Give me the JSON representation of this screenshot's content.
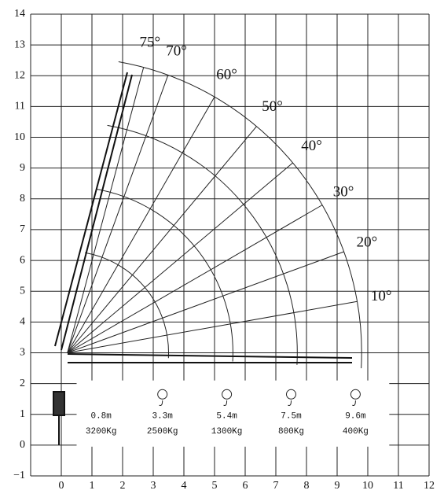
{
  "axes": {
    "xlim": [
      -1,
      12
    ],
    "ylim": [
      -1,
      14
    ],
    "xticks": [
      {
        "value": -1,
        "label": ""
      },
      0,
      1,
      2,
      3,
      4,
      5,
      6,
      7,
      8,
      9,
      10,
      11,
      12
    ],
    "yticks": [
      {
        "value": -1,
        "label": "−1"
      },
      0,
      1,
      2,
      3,
      4,
      5,
      6,
      7,
      8,
      9,
      10,
      11,
      12,
      13,
      14
    ]
  },
  "angles": [
    {
      "value": 75,
      "label": "75°"
    },
    {
      "value": 70,
      "label": "70°"
    },
    {
      "value": 60,
      "label": "60°"
    },
    {
      "value": 50,
      "label": "50°"
    },
    {
      "value": 40,
      "label": "40°"
    },
    {
      "value": 30,
      "label": "30°"
    },
    {
      "value": 20,
      "label": "20°"
    },
    {
      "value": 10,
      "label": "10°"
    }
  ],
  "loads": [
    {
      "radius": 0.8,
      "radius_label": "0.8m",
      "load": "3200Kg"
    },
    {
      "radius": 3.3,
      "radius_label": "3.3m",
      "load": "2500Kg"
    },
    {
      "radius": 5.4,
      "radius_label": "5.4m",
      "load": "1300Kg"
    },
    {
      "radius": 7.5,
      "radius_label": "7.5m",
      "load": "800Kg"
    },
    {
      "radius": 9.6,
      "radius_label": "9.6m",
      "load": "400Kg"
    }
  ]
}
